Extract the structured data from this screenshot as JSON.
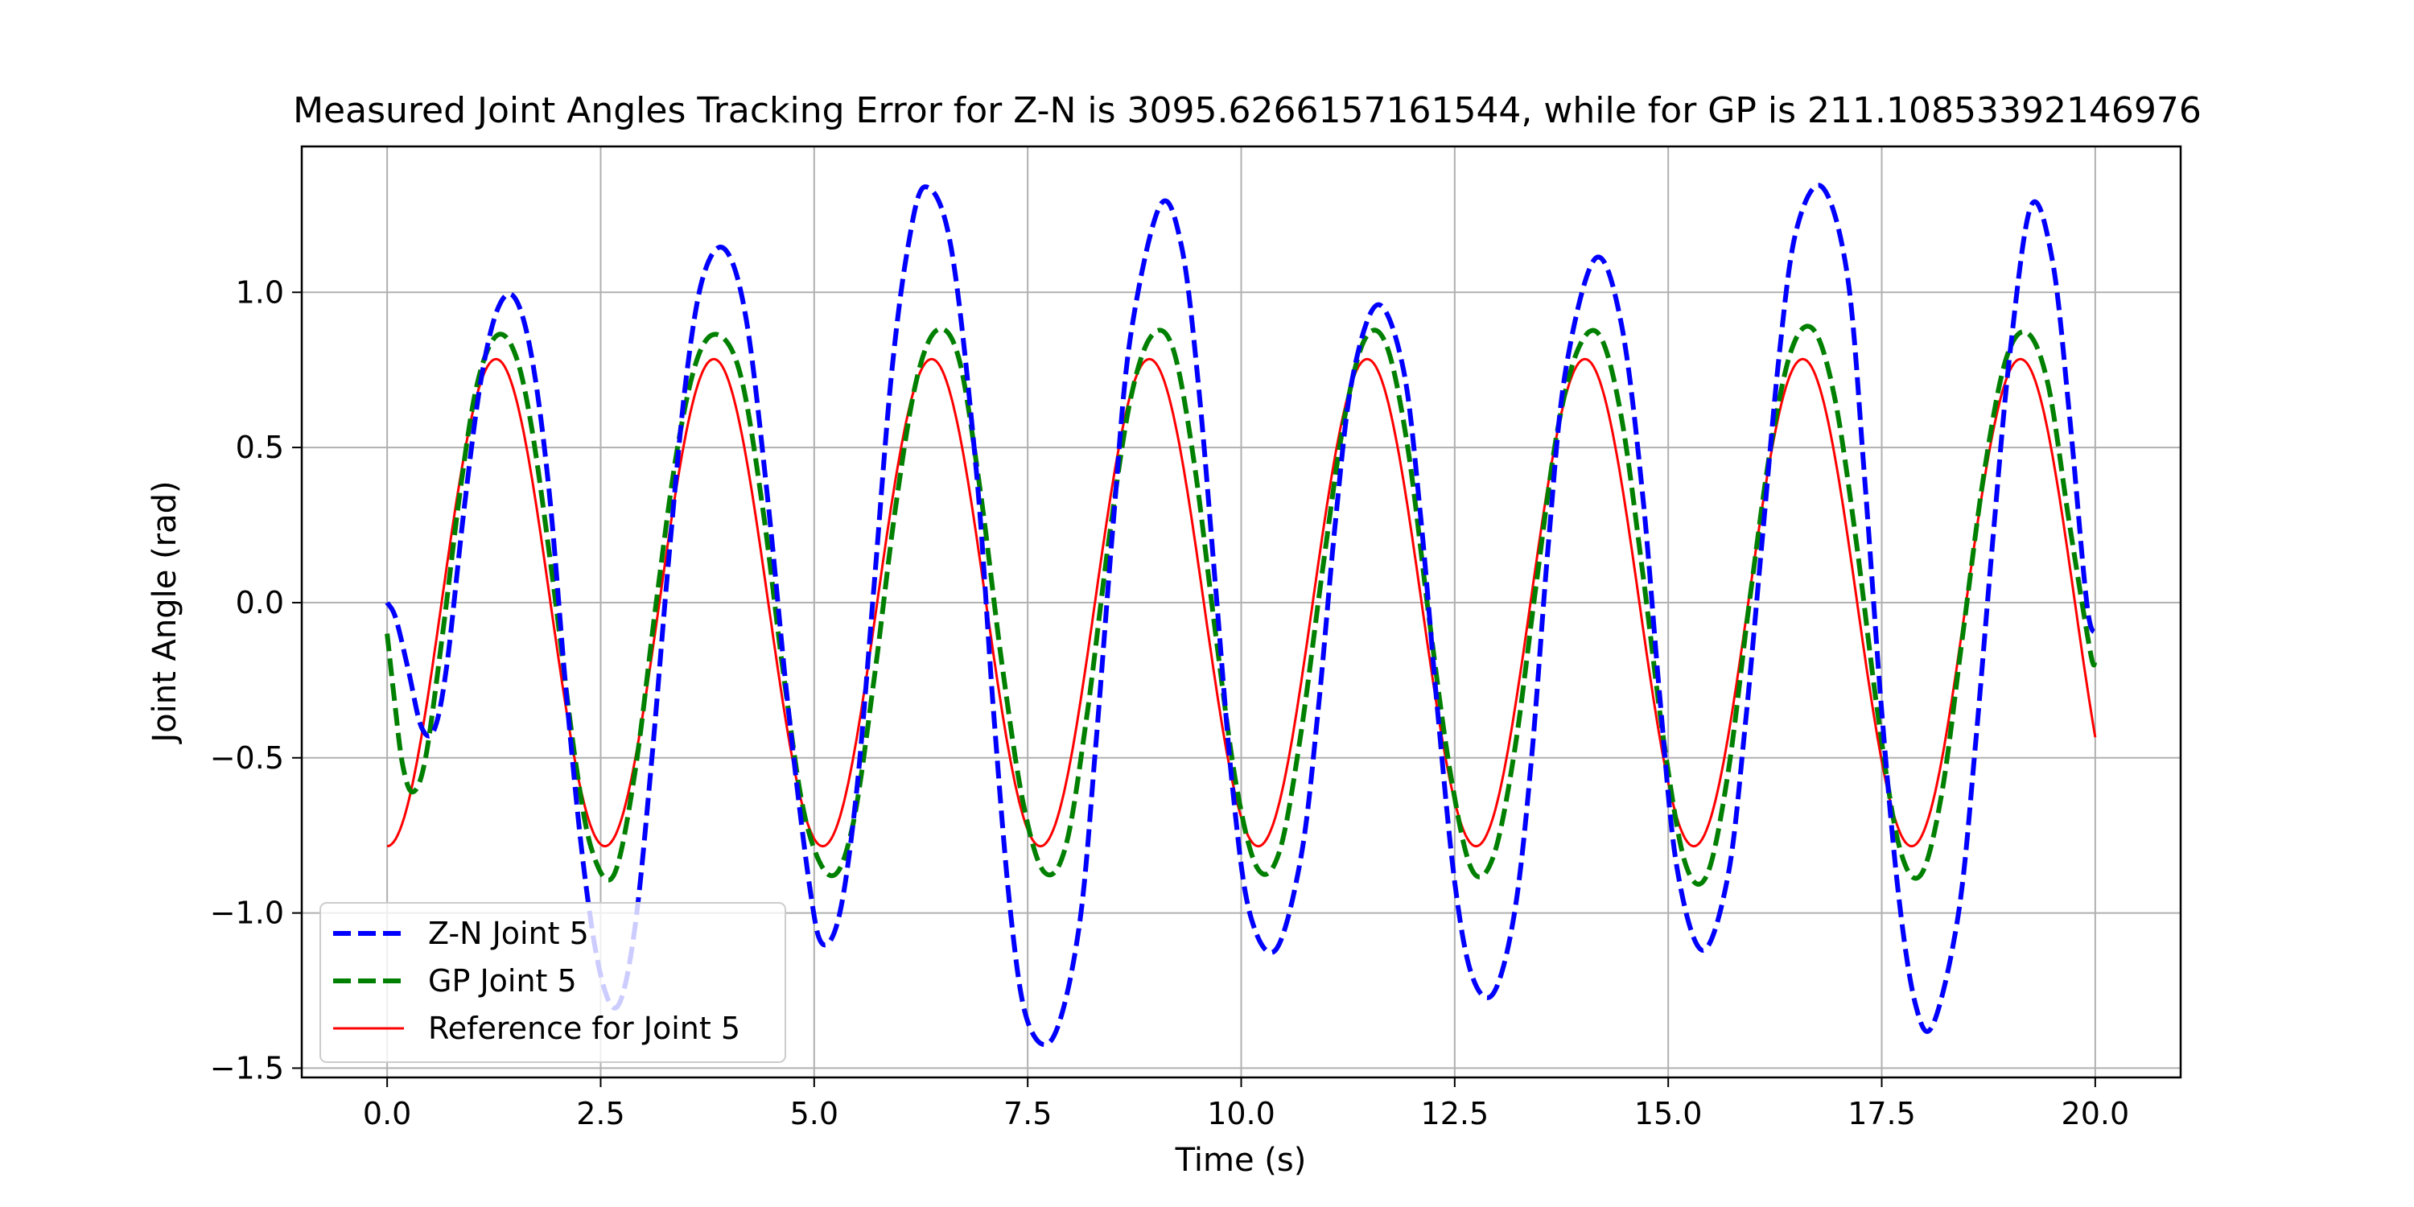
{
  "chart_data": {
    "type": "line",
    "title": "Measured Joint Angles Tracking Error for Z-N is 3095.6266157161544, while for GP is 211.10853392146976",
    "xlabel": "Time (s)",
    "ylabel": "Joint Angle (rad)",
    "xlim": [
      -1.0,
      21.0
    ],
    "ylim": [
      -1.53,
      1.47
    ],
    "x_ticks": [
      0.0,
      2.5,
      5.0,
      7.5,
      10.0,
      12.5,
      15.0,
      17.5,
      20.0
    ],
    "x_tick_labels": [
      "0.0",
      "2.5",
      "5.0",
      "7.5",
      "10.0",
      "12.5",
      "15.0",
      "17.5",
      "20.0"
    ],
    "y_ticks": [
      -1.5,
      -1.0,
      -0.5,
      0.0,
      0.5,
      1.0
    ],
    "y_tick_labels": [
      "−1.5",
      "−1.0",
      "−0.5",
      "0.0",
      "0.5",
      "1.0"
    ],
    "grid": true,
    "legend_position": "lower-left",
    "series": [
      {
        "name": "Z-N Joint 5",
        "color": "#0000ff",
        "style": "dashed",
        "x": [
          0.0,
          0.1,
          0.25,
          0.4,
          0.55,
          0.7,
          0.9,
          1.1,
          1.3,
          1.5,
          1.7,
          1.9,
          2.1,
          2.3,
          2.5,
          2.7,
          2.9,
          3.1,
          3.3,
          3.5,
          3.7,
          3.95,
          4.2,
          4.45,
          4.7,
          4.95,
          5.1,
          5.3,
          5.5,
          5.7,
          5.9,
          6.1,
          6.3,
          6.6,
          6.9,
          7.1,
          7.3,
          7.5,
          7.8,
          8.1,
          8.3,
          8.5,
          8.7,
          9.05,
          9.3,
          9.5,
          9.7,
          9.9,
          10.1,
          10.4,
          10.7,
          10.9,
          11.1,
          11.3,
          11.6,
          11.9,
          12.1,
          12.3,
          12.5,
          12.7,
          12.95,
          13.2,
          13.4,
          13.6,
          13.8,
          14.15,
          14.45,
          14.7,
          14.9,
          15.1,
          15.4,
          15.7,
          15.9,
          16.1,
          16.3,
          16.5,
          16.8,
          17.1,
          17.3,
          17.5,
          17.7,
          17.9,
          18.1,
          18.4,
          18.6,
          18.8,
          19.0,
          19.25,
          19.5,
          19.7,
          19.9,
          20.0
        ],
        "y": [
          0.0,
          -0.05,
          -0.22,
          -0.4,
          -0.41,
          -0.2,
          0.3,
          0.72,
          0.95,
          0.98,
          0.78,
          0.35,
          -0.3,
          -0.85,
          -1.2,
          -1.3,
          -1.05,
          -0.5,
          0.15,
          0.72,
          1.05,
          1.14,
          0.92,
          0.35,
          -0.35,
          -0.92,
          -1.1,
          -1.0,
          -0.6,
          0.05,
          0.72,
          1.15,
          1.34,
          1.15,
          0.42,
          -0.35,
          -1.0,
          -1.35,
          -1.4,
          -1.05,
          -0.45,
          0.25,
          0.85,
          1.28,
          1.15,
          0.7,
          0.05,
          -0.6,
          -1.0,
          -1.12,
          -0.82,
          -0.35,
          0.25,
          0.72,
          0.96,
          0.75,
          0.28,
          -0.35,
          -0.9,
          -1.2,
          -1.26,
          -1.0,
          -0.5,
          0.2,
          0.75,
          1.11,
          0.9,
          0.35,
          -0.3,
          -0.85,
          -1.12,
          -0.88,
          -0.4,
          0.2,
          0.8,
          1.2,
          1.34,
          1.05,
          0.4,
          -0.35,
          -0.95,
          -1.3,
          -1.36,
          -1.0,
          -0.45,
          0.2,
          0.8,
          1.28,
          1.1,
          0.6,
          0.0,
          -0.1
        ]
      },
      {
        "name": "GP Joint 5",
        "color": "#008000",
        "style": "dashed",
        "x": [
          0.0,
          0.08,
          0.18,
          0.3,
          0.45,
          0.65,
          0.85,
          1.05,
          1.28,
          1.5,
          1.7,
          1.95,
          2.2,
          2.4,
          2.65,
          2.9,
          3.15,
          3.4,
          3.65,
          3.9,
          4.15,
          4.4,
          4.65,
          4.9,
          5.2,
          5.45,
          5.7,
          5.95,
          6.2,
          6.45,
          6.7,
          6.95,
          7.2,
          7.45,
          7.7,
          7.95,
          8.2,
          8.45,
          8.7,
          8.95,
          9.2,
          9.45,
          9.7,
          9.95,
          10.2,
          10.45,
          10.7,
          10.95,
          11.2,
          11.45,
          11.7,
          11.95,
          12.2,
          12.45,
          12.7,
          12.95,
          13.2,
          13.45,
          13.7,
          13.95,
          14.2,
          14.45,
          14.7,
          14.95,
          15.2,
          15.45,
          15.7,
          15.95,
          16.2,
          16.45,
          16.7,
          16.95,
          17.2,
          17.45,
          17.7,
          17.95,
          18.2,
          18.45,
          18.7,
          18.95,
          19.2,
          19.45,
          19.7,
          19.95,
          20.0
        ],
        "y": [
          -0.1,
          -0.3,
          -0.52,
          -0.61,
          -0.5,
          -0.1,
          0.35,
          0.7,
          0.86,
          0.8,
          0.55,
          0.05,
          -0.5,
          -0.8,
          -0.88,
          -0.55,
          0.0,
          0.5,
          0.8,
          0.86,
          0.72,
          0.3,
          -0.25,
          -0.7,
          -0.88,
          -0.72,
          -0.25,
          0.3,
          0.72,
          0.88,
          0.78,
          0.35,
          -0.2,
          -0.65,
          -0.87,
          -0.78,
          -0.35,
          0.2,
          0.65,
          0.86,
          0.82,
          0.45,
          -0.1,
          -0.6,
          -0.86,
          -0.8,
          -0.42,
          0.1,
          0.58,
          0.85,
          0.83,
          0.5,
          -0.05,
          -0.55,
          -0.86,
          -0.82,
          -0.48,
          0.05,
          0.55,
          0.82,
          0.86,
          0.6,
          0.1,
          -0.45,
          -0.84,
          -0.88,
          -0.55,
          0.0,
          0.5,
          0.82,
          0.88,
          0.66,
          0.2,
          -0.35,
          -0.78,
          -0.88,
          -0.62,
          -0.1,
          0.42,
          0.78,
          0.87,
          0.7,
          0.25,
          -0.17,
          -0.17
        ]
      },
      {
        "name": "Reference for Joint 5",
        "color": "#ff0000",
        "style": "solid",
        "function": "y = 0.785*sin(2*pi*x/2.55 - pi/2)",
        "x_start": 0.0,
        "x_end": 20.0,
        "amplitude": 0.785,
        "period": 2.55,
        "phase": -1.5708
      }
    ]
  }
}
